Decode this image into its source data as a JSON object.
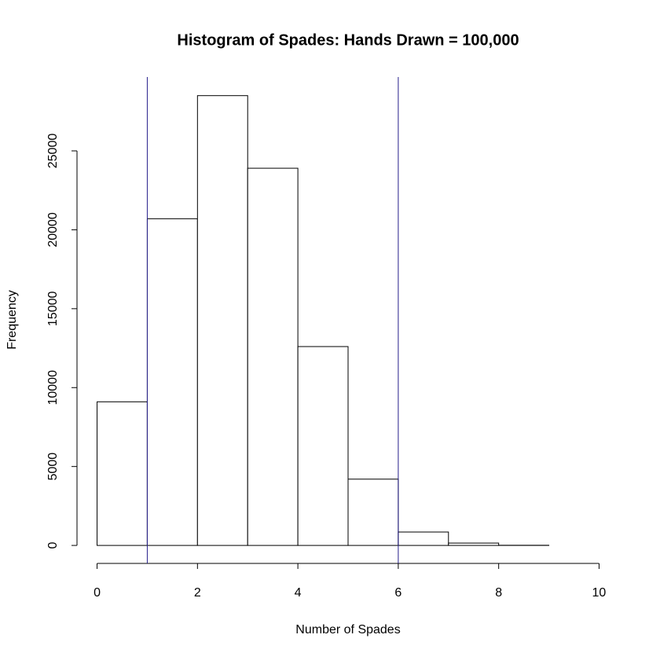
{
  "chart_data": {
    "type": "histogram",
    "title": "Histogram of Spades: Hands Drawn = 100,000",
    "x_label": "Number of Spades",
    "y_label": "Frequency",
    "bins": [
      0,
      1,
      2,
      3,
      4,
      5,
      6,
      7,
      8,
      9,
      10
    ],
    "values": [
      9100,
      20700,
      28500,
      23900,
      12600,
      4200,
      850,
      150,
      10,
      0
    ],
    "color": "#ffffff",
    "edge_color": "#000000",
    "xlim": [
      -0.4,
      10.4
    ],
    "xticks": [
      0,
      2,
      4,
      6,
      8,
      10
    ],
    "ylim": [
      -1140,
      29680
    ],
    "yticks": [
      0,
      5000,
      10000,
      15000,
      20000,
      25000
    ],
    "vlines": [
      1,
      6
    ],
    "vline_color": "#27208c"
  }
}
